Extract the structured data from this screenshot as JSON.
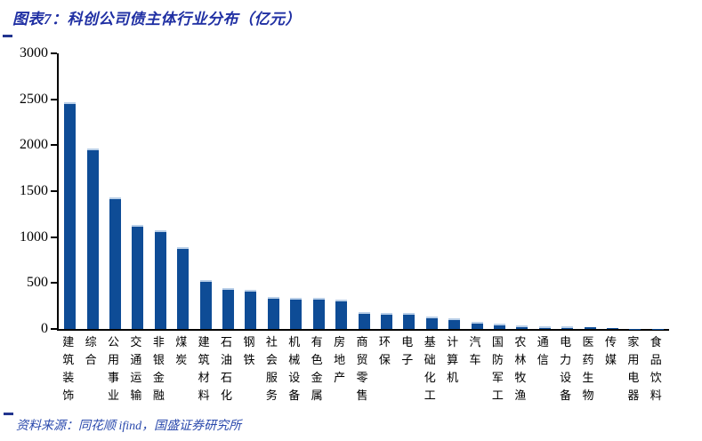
{
  "header": {
    "title": "图表7：科创公司债主体行业分布（亿元）"
  },
  "footer": {
    "source": "资料来源：同花顺 ifind，国盛证券研究所"
  },
  "colors": {
    "bar": "#0E4C96",
    "bar_edge": "#B9CFE8",
    "title_blue": "#1F2FA3",
    "source_blue": "#2A49AC",
    "dash_blue": "#22358F",
    "axis": "#000000"
  },
  "chart_data": {
    "type": "bar",
    "title": "图表7：科创公司债主体行业分布（亿元）",
    "unit": "亿元",
    "categories": [
      "建筑装饰",
      "综合",
      "公用事业",
      "交通运输",
      "非银金融",
      "煤炭",
      "建筑材料",
      "石油石化",
      "钢铁",
      "社会服务",
      "机械设备",
      "有色金属",
      "房地产",
      "商贸零售",
      "环保",
      "电子",
      "基础化工",
      "计算机",
      "汽车",
      "国防军工",
      "农林牧渔",
      "通信",
      "电力设备",
      "医药生物",
      "传媒",
      "家用电器",
      "食品饮料"
    ],
    "values": [
      2465,
      1960,
      1430,
      1135,
      1070,
      890,
      535,
      450,
      425,
      350,
      340,
      335,
      315,
      180,
      170,
      175,
      135,
      120,
      80,
      55,
      40,
      30,
      25,
      15,
      5,
      2,
      1
    ],
    "xlabel": "",
    "ylabel": "",
    "ylim": [
      0,
      3000
    ],
    "yticks": [
      0,
      500,
      1000,
      1500,
      2000,
      2500,
      3000
    ],
    "grid": false,
    "legend": false,
    "bar_color": "#0E4C96"
  }
}
